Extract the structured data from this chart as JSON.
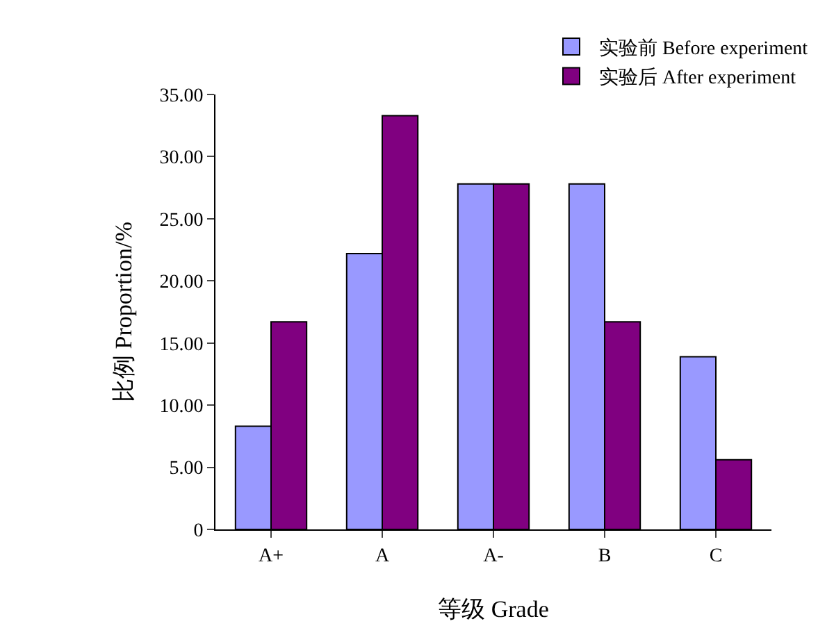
{
  "chart_data": {
    "type": "bar",
    "xlabel": "等级 Grade",
    "ylabel": "比例 Proportion/%",
    "categories": [
      "A+",
      "A",
      "A-",
      "B",
      "C"
    ],
    "series": [
      {
        "name": "实验前 Before experiment",
        "color": "#9999ff",
        "values": [
          8.3,
          22.2,
          27.8,
          27.8,
          13.9
        ]
      },
      {
        "name": "实验后 After experiment",
        "color": "#800080",
        "values": [
          16.7,
          33.3,
          27.8,
          16.7,
          5.6
        ]
      }
    ],
    "ylim": [
      0,
      35
    ],
    "yticks": [
      {
        "value": 0,
        "label": "0"
      },
      {
        "value": 5,
        "label": "5.00"
      },
      {
        "value": 10,
        "label": "10.00"
      },
      {
        "value": 15,
        "label": "15.00"
      },
      {
        "value": 20,
        "label": "20.00"
      },
      {
        "value": 25,
        "label": "25.00"
      },
      {
        "value": 30,
        "label": "30.00"
      },
      {
        "value": 35,
        "label": "35.00"
      }
    ],
    "legend": "top right"
  }
}
